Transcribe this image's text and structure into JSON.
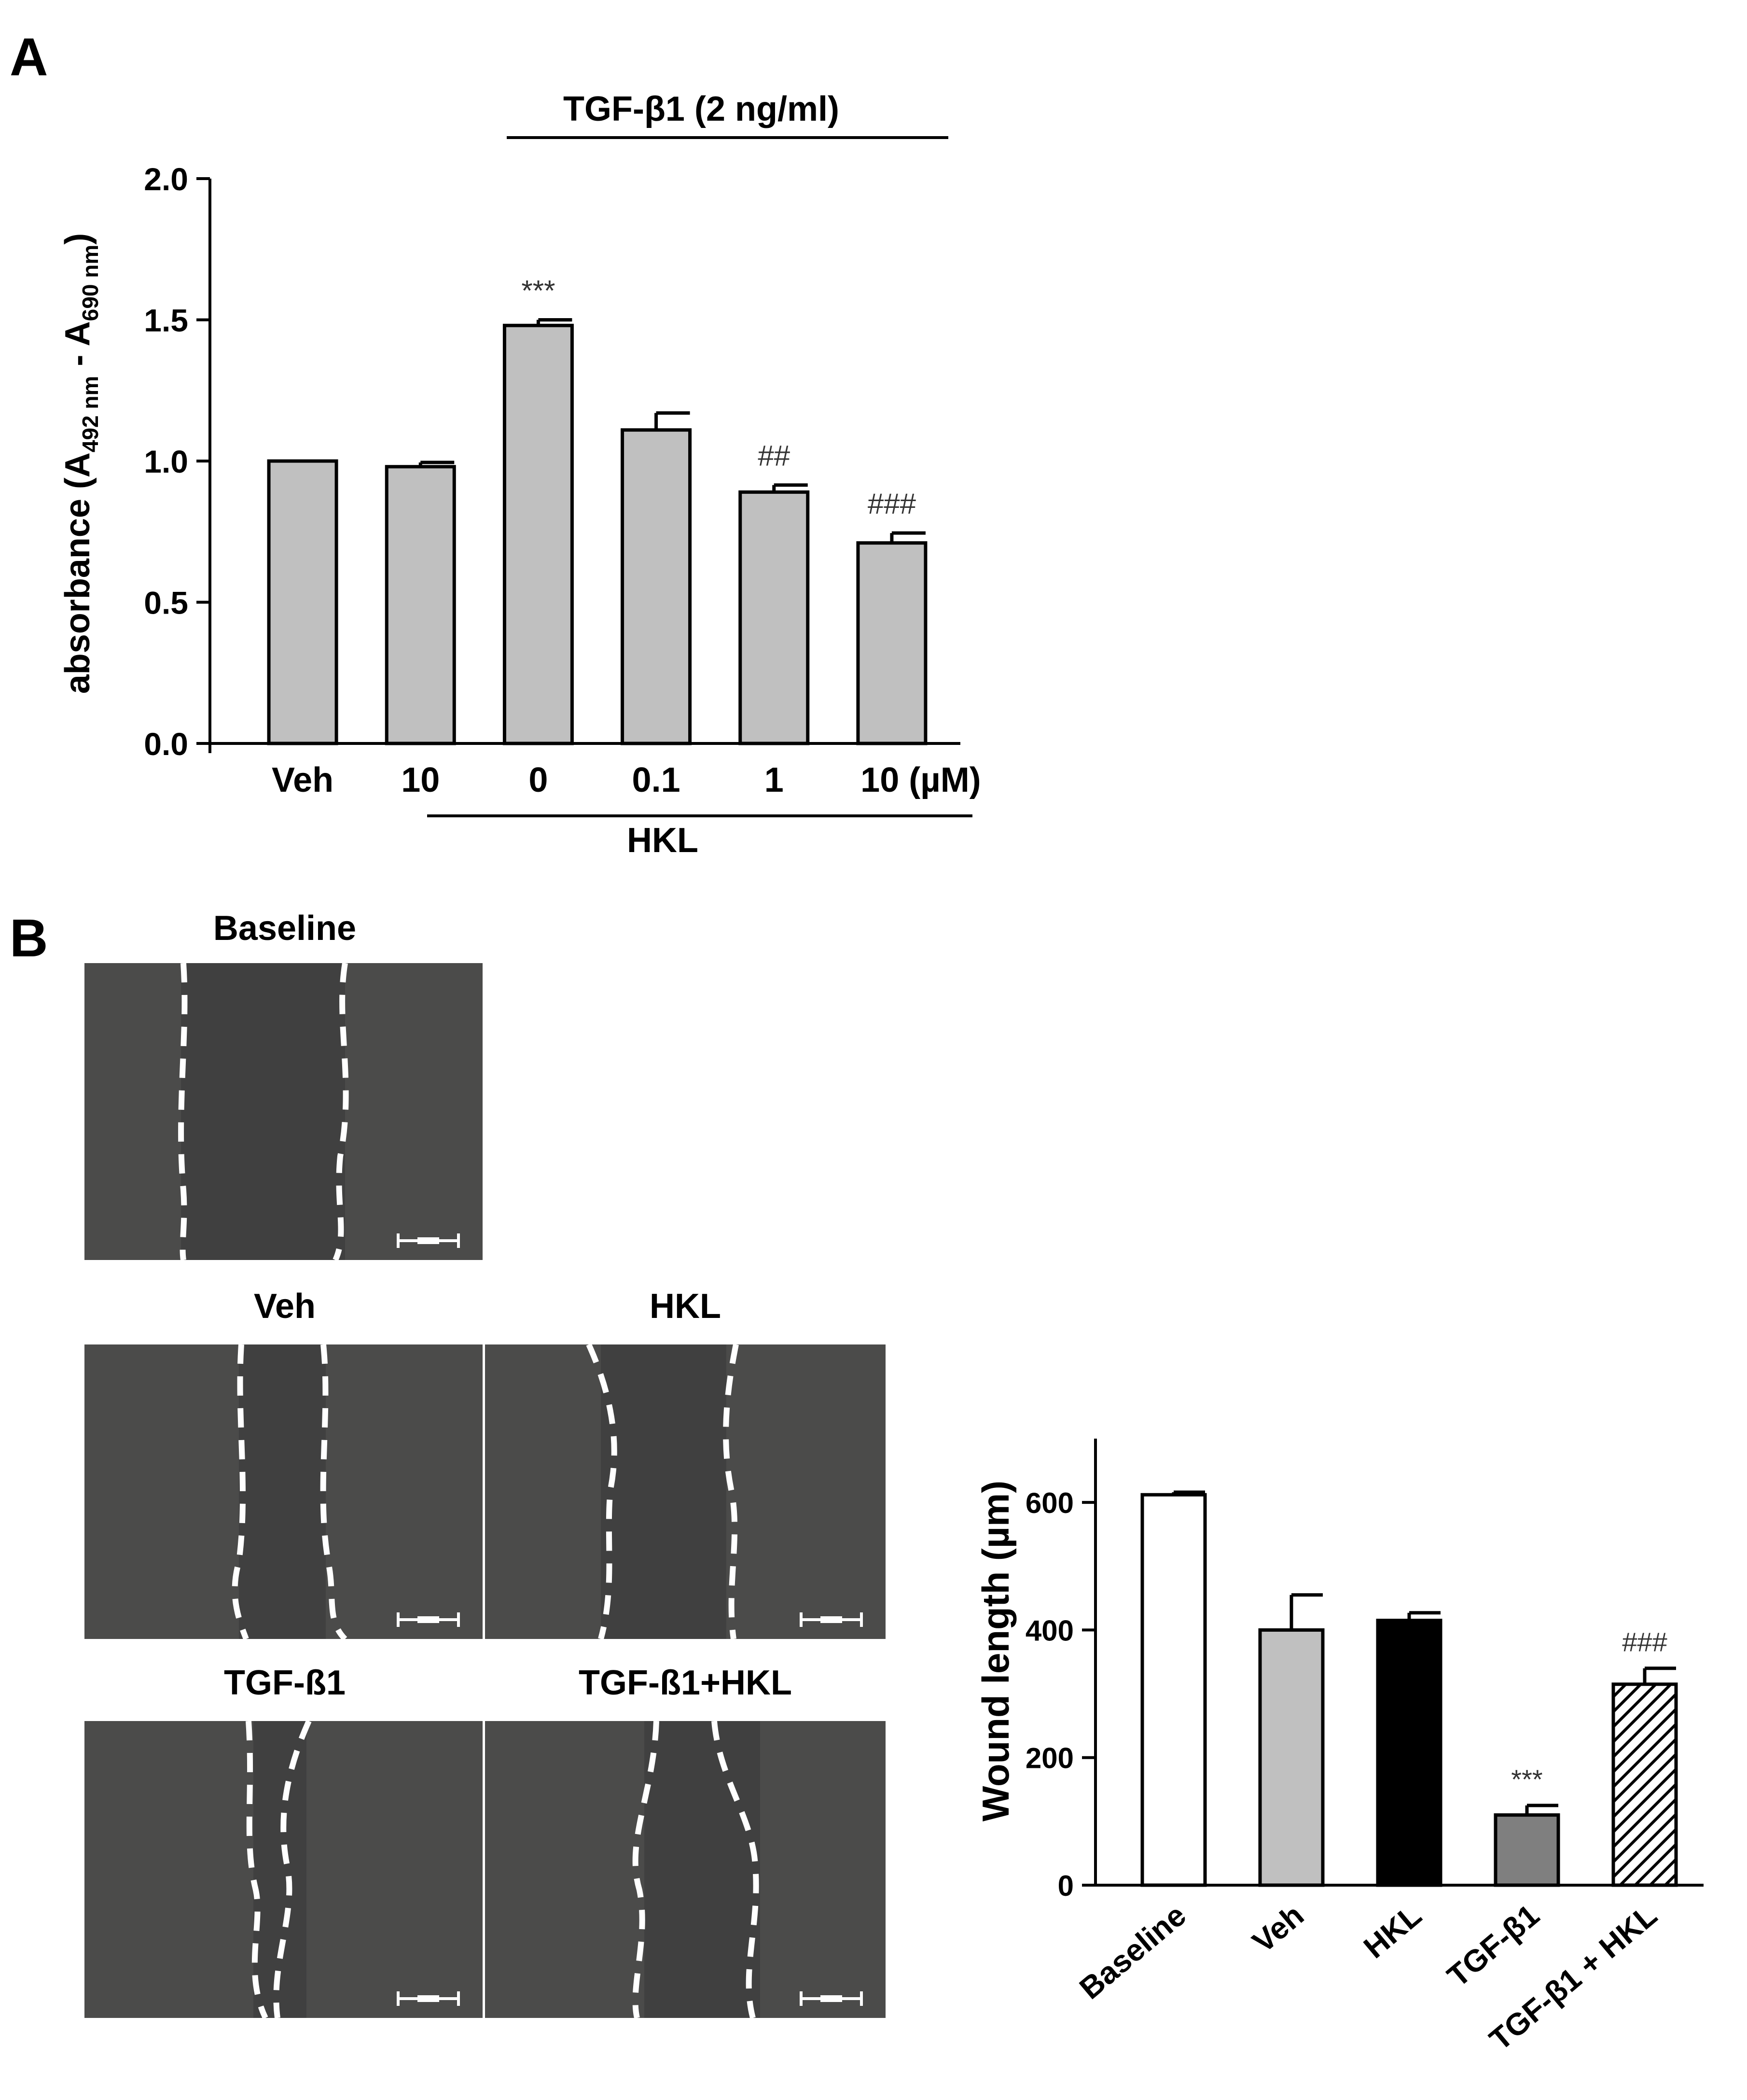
{
  "panels": {
    "a_letter": "A",
    "b_letter": "B"
  },
  "chart_data": [
    {
      "type": "bar",
      "ylabel": "absorbance (A492 nm - A690 nm)",
      "ylabel_parts": {
        "pre": "absorbance (A",
        "sub1": "492 nm",
        "mid": " - A",
        "sub2": "690 nm",
        "post": ")"
      },
      "ylim": [
        0,
        2.0
      ],
      "yticks": [
        "0.0",
        "0.5",
        "1.0",
        "1.5",
        "2.0"
      ],
      "categories": [
        "Veh",
        "10",
        "0",
        "0.1",
        "1",
        "10 (µM)"
      ],
      "values": [
        1.0,
        0.98,
        1.48,
        1.11,
        0.89,
        0.71
      ],
      "errors": [
        0,
        0.015,
        0.02,
        0.06,
        0.025,
        0.035
      ],
      "annotations": [
        "",
        "",
        "***",
        "",
        "##",
        "###"
      ],
      "top_bracket_label": "TGF-β1 (2 ng/ml)",
      "bottom_bracket_label": "HKL",
      "bar_color": "#c0c0c0"
    },
    {
      "type": "bar",
      "ylabel": "Wound length (µm)",
      "ylim": [
        0,
        700
      ],
      "yticks": [
        "0",
        "200",
        "400",
        "600"
      ],
      "categories": [
        "Baseline",
        "Veh",
        "HKL",
        "TGF-β1",
        "TGF-β1 + HKL"
      ],
      "values": [
        612,
        400,
        415,
        110,
        315
      ],
      "errors": [
        4,
        55,
        12,
        15,
        25
      ],
      "annotations": [
        "",
        "",
        "",
        "***",
        "###"
      ],
      "bar_fills": [
        "#ffffff",
        "#c0c0c0",
        "#000000",
        "#7f7f7f",
        "hatch"
      ]
    }
  ],
  "micrographs": {
    "baseline": "Baseline",
    "veh": "Veh",
    "hkl": "HKL",
    "tgf": "TGF-ß1",
    "tgf_hkl": "TGF-ß1+HKL"
  }
}
